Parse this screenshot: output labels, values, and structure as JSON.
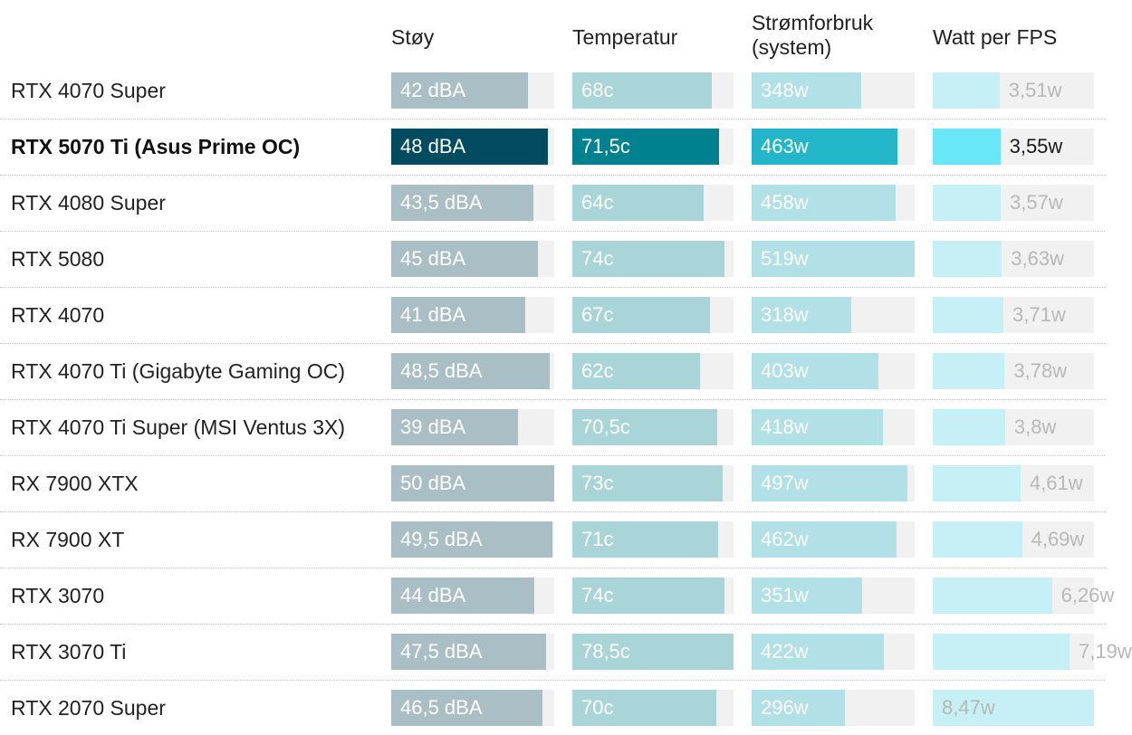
{
  "chart_data": {
    "type": "bar",
    "title": "",
    "highlight_row": 1,
    "columns": [
      {
        "key": "noise",
        "label": "Støy",
        "min": 0,
        "max": 50,
        "color": "#a9bfc5",
        "highlight_color": "#004b5f",
        "text_color": "#ffffff",
        "highlight_text_color": "#ffffff",
        "label_position": "inside"
      },
      {
        "key": "temp",
        "label": "Temperatur",
        "min": 0,
        "max": 78.5,
        "color": "#a9d4d8",
        "highlight_color": "#00818f",
        "text_color": "#ffffff",
        "highlight_text_color": "#ffffff",
        "label_position": "inside"
      },
      {
        "key": "power",
        "label": "Strømforbruk\n(system)",
        "min": 0,
        "max": 519,
        "color": "#b1e0e6",
        "highlight_color": "#22b6c8",
        "text_color": "#ffffff",
        "highlight_text_color": "#ffffff",
        "label_position": "inside"
      },
      {
        "key": "wpf",
        "label": "Watt per FPS",
        "min": 0,
        "max": 8.47,
        "color": "#c6f0f5",
        "highlight_color": "#69e7f8",
        "text_color": "#b8b8b8",
        "highlight_text_color": "#181818",
        "label_position": "auto"
      }
    ],
    "rows": [
      {
        "name": "RTX 4070 Super",
        "values": [
          42,
          68,
          348,
          3.51
        ],
        "labels": [
          "42 dBA",
          "68c",
          "348w",
          "3,51w"
        ]
      },
      {
        "name": "RTX 5070 Ti (Asus Prime OC)",
        "values": [
          48,
          71.5,
          463,
          3.55
        ],
        "labels": [
          "48 dBA",
          "71,5c",
          "463w",
          "3,55w"
        ]
      },
      {
        "name": "RTX 4080 Super",
        "values": [
          43.5,
          64,
          458,
          3.57
        ],
        "labels": [
          "43,5 dBA",
          "64c",
          "458w",
          "3,57w"
        ]
      },
      {
        "name": "RTX 5080",
        "values": [
          45,
          74,
          519,
          3.63
        ],
        "labels": [
          "45 dBA",
          "74c",
          "519w",
          "3,63w"
        ]
      },
      {
        "name": "RTX 4070",
        "values": [
          41,
          67,
          318,
          3.71
        ],
        "labels": [
          "41 dBA",
          "67c",
          "318w",
          "3,71w"
        ]
      },
      {
        "name": "RTX 4070 Ti (Gigabyte Gaming OC)",
        "values": [
          48.5,
          62,
          403,
          3.78
        ],
        "labels": [
          "48,5 dBA",
          "62c",
          "403w",
          "3,78w"
        ]
      },
      {
        "name": "RTX 4070 Ti Super (MSI Ventus 3X)",
        "values": [
          39,
          70.5,
          418,
          3.8
        ],
        "labels": [
          "39 dBA",
          "70,5c",
          "418w",
          "3,8w"
        ]
      },
      {
        "name": "RX 7900 XTX",
        "values": [
          50,
          73,
          497,
          4.61
        ],
        "labels": [
          "50 dBA",
          "73c",
          "497w",
          "4,61w"
        ]
      },
      {
        "name": "RX 7900 XT",
        "values": [
          49.5,
          71,
          462,
          4.69
        ],
        "labels": [
          "49,5 dBA",
          "71c",
          "462w",
          "4,69w"
        ]
      },
      {
        "name": "RTX 3070",
        "values": [
          44,
          74,
          351,
          6.26
        ],
        "labels": [
          "44 dBA",
          "74c",
          "351w",
          "6,26w"
        ]
      },
      {
        "name": "RTX 3070 Ti",
        "values": [
          47.5,
          78.5,
          422,
          7.19
        ],
        "labels": [
          "47,5 dBA",
          "78,5c",
          "422w",
          "7,19w"
        ]
      },
      {
        "name": "RTX 2070 Super",
        "values": [
          46.5,
          70,
          296,
          8.47
        ],
        "labels": [
          "46,5 dBA",
          "70c",
          "296w",
          "8,47w"
        ]
      }
    ]
  }
}
